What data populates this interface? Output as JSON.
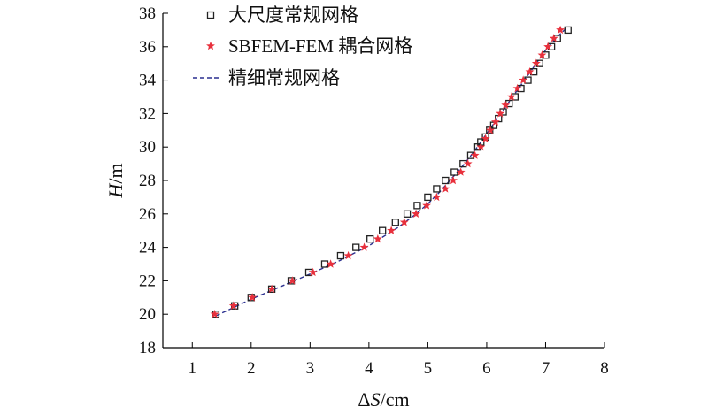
{
  "chart_data": {
    "type": "scatter",
    "xlabel": "ΔS/cm",
    "ylabel": "H/m",
    "xlabel_parts": [
      "Δ",
      "S",
      "/cm"
    ],
    "ylabel_parts": [
      "H",
      "/m"
    ],
    "xlim": [
      0.5,
      8
    ],
    "ylim": [
      18,
      38
    ],
    "xticks": [
      1,
      2,
      3,
      4,
      5,
      6,
      7,
      8
    ],
    "yticks": [
      18,
      20,
      22,
      24,
      26,
      28,
      30,
      32,
      34,
      36,
      38
    ],
    "grid": false,
    "legend_position": "top-left",
    "series": [
      {
        "name": "大尺度常规网格",
        "marker": "square-open",
        "color": "#222222",
        "points": [
          [
            1.4,
            20.0
          ],
          [
            1.72,
            20.5
          ],
          [
            2.0,
            21.0
          ],
          [
            2.35,
            21.5
          ],
          [
            2.68,
            22.0
          ],
          [
            2.98,
            22.5
          ],
          [
            3.25,
            23.0
          ],
          [
            3.52,
            23.5
          ],
          [
            3.78,
            24.0
          ],
          [
            4.02,
            24.5
          ],
          [
            4.23,
            25.0
          ],
          [
            4.45,
            25.5
          ],
          [
            4.65,
            26.0
          ],
          [
            4.82,
            26.5
          ],
          [
            5.0,
            27.0
          ],
          [
            5.15,
            27.5
          ],
          [
            5.3,
            28.0
          ],
          [
            5.45,
            28.5
          ],
          [
            5.6,
            29.0
          ],
          [
            5.73,
            29.5
          ],
          [
            5.85,
            30.0
          ],
          [
            5.9,
            30.3
          ],
          [
            5.98,
            30.6
          ],
          [
            6.05,
            31.0
          ],
          [
            6.12,
            31.3
          ],
          [
            6.2,
            31.7
          ],
          [
            6.28,
            32.1
          ],
          [
            6.38,
            32.6
          ],
          [
            6.48,
            33.0
          ],
          [
            6.58,
            33.5
          ],
          [
            6.7,
            34.0
          ],
          [
            6.8,
            34.5
          ],
          [
            6.9,
            35.0
          ],
          [
            7.0,
            35.5
          ],
          [
            7.1,
            36.0
          ],
          [
            7.2,
            36.5
          ],
          [
            7.38,
            37.0
          ]
        ]
      },
      {
        "name": "SBFEM-FEM 耦合网格",
        "marker": "star",
        "color": "#e8303c",
        "points": [
          [
            1.38,
            20.0
          ],
          [
            1.7,
            20.5
          ],
          [
            2.02,
            21.0
          ],
          [
            2.35,
            21.5
          ],
          [
            2.7,
            22.0
          ],
          [
            3.05,
            22.5
          ],
          [
            3.35,
            23.0
          ],
          [
            3.65,
            23.5
          ],
          [
            3.92,
            24.0
          ],
          [
            4.15,
            24.5
          ],
          [
            4.38,
            25.0
          ],
          [
            4.6,
            25.5
          ],
          [
            4.8,
            26.0
          ],
          [
            4.98,
            26.5
          ],
          [
            5.15,
            27.0
          ],
          [
            5.3,
            27.5
          ],
          [
            5.43,
            28.0
          ],
          [
            5.56,
            28.5
          ],
          [
            5.68,
            29.0
          ],
          [
            5.8,
            29.5
          ],
          [
            5.9,
            30.0
          ],
          [
            5.98,
            30.5
          ],
          [
            6.06,
            31.0
          ],
          [
            6.15,
            31.5
          ],
          [
            6.23,
            32.0
          ],
          [
            6.32,
            32.5
          ],
          [
            6.42,
            33.0
          ],
          [
            6.52,
            33.5
          ],
          [
            6.62,
            34.0
          ],
          [
            6.73,
            34.5
          ],
          [
            6.84,
            35.0
          ],
          [
            6.94,
            35.5
          ],
          [
            7.04,
            36.0
          ],
          [
            7.14,
            36.5
          ],
          [
            7.25,
            37.0
          ]
        ]
      },
      {
        "name": "精细常规网格",
        "marker": "dashed-line",
        "color": "#2a2f8f",
        "points": [
          [
            1.4,
            19.9
          ],
          [
            2.0,
            20.9
          ],
          [
            2.6,
            21.8
          ],
          [
            3.0,
            22.4
          ],
          [
            3.5,
            23.2
          ],
          [
            4.0,
            24.1
          ],
          [
            4.5,
            25.2
          ],
          [
            4.8,
            26.0
          ],
          [
            5.0,
            26.6
          ],
          [
            5.2,
            27.3
          ],
          [
            5.4,
            28.1
          ],
          [
            5.6,
            28.9
          ],
          [
            5.8,
            29.8
          ],
          [
            6.0,
            30.8
          ],
          [
            6.2,
            31.8
          ],
          [
            6.4,
            32.8
          ],
          [
            6.6,
            33.8
          ],
          [
            6.8,
            34.8
          ],
          [
            7.0,
            35.8
          ],
          [
            7.2,
            36.6
          ],
          [
            7.35,
            37.1
          ]
        ]
      }
    ]
  }
}
